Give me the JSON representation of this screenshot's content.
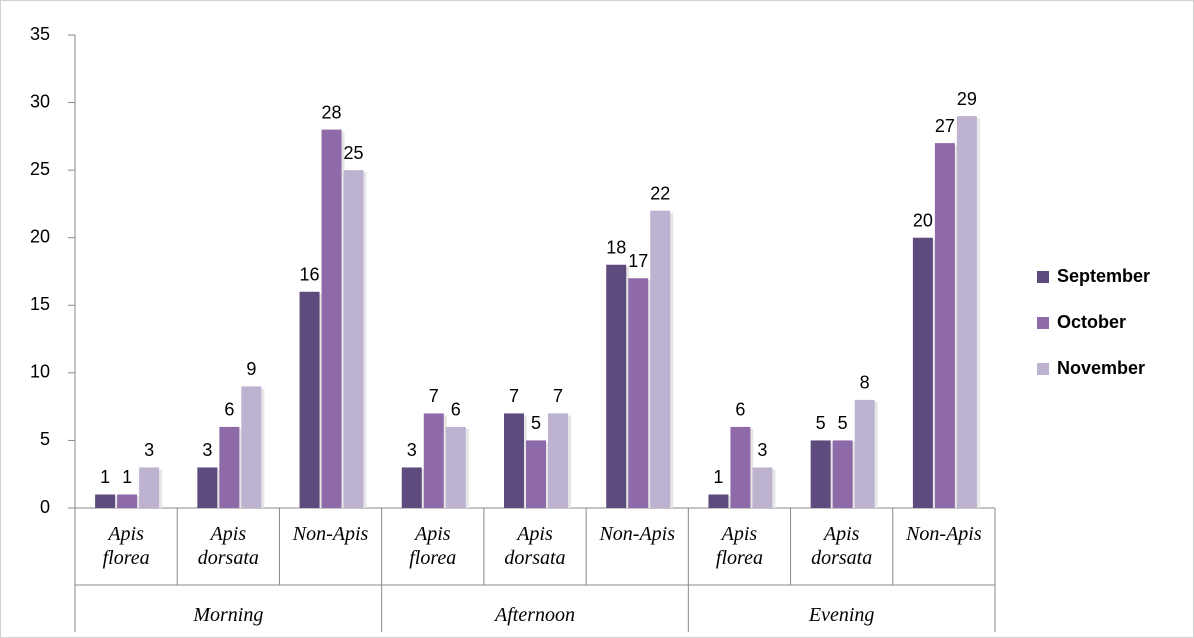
{
  "chart_data": {
    "type": "bar",
    "categories": [
      "Apis\nflorea",
      "Apis\ndorsata",
      "Non-Apis",
      "Apis\nflorea",
      "Apis\ndorsata",
      "Non-Apis",
      "Apis\nflorea",
      "Apis\ndorsata",
      "Non-Apis"
    ],
    "groups": [
      "Morning",
      "Afternoon",
      "Evening"
    ],
    "series": [
      {
        "name": "September",
        "color": "#5e4b7d",
        "values": [
          1,
          3,
          16,
          3,
          7,
          18,
          1,
          5,
          20
        ]
      },
      {
        "name": "October",
        "color": "#8e6aa8",
        "values": [
          1,
          6,
          28,
          7,
          5,
          17,
          6,
          5,
          27
        ]
      },
      {
        "name": "November",
        "color": "#bdb3d1",
        "values": [
          3,
          9,
          25,
          6,
          7,
          22,
          3,
          8,
          29
        ]
      }
    ],
    "ylim": [
      0,
      35
    ],
    "yticks": [
      0,
      5,
      10,
      15,
      20,
      25,
      30,
      35
    ],
    "legend": "right",
    "value_labels_shown": true
  }
}
